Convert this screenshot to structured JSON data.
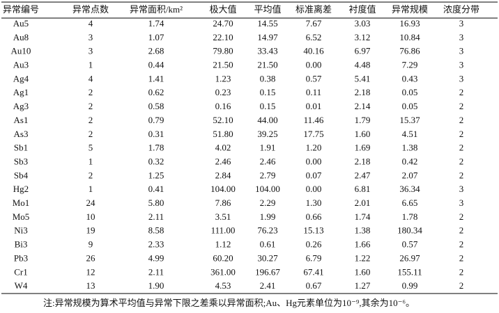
{
  "table": {
    "header": [
      "异常编号",
      "异常点数",
      "异常面积/km²",
      "极大值",
      "平均值",
      "标准离差",
      "衬度值",
      "异常规模",
      "浓度分带"
    ],
    "rows": [
      [
        "Au5",
        "4",
        "1.74",
        "24.70",
        "14.55",
        "7.67",
        "3.03",
        "16.93",
        "3"
      ],
      [
        "Au8",
        "3",
        "1.07",
        "22.10",
        "14.97",
        "6.52",
        "3.12",
        "10.84",
        "3"
      ],
      [
        "Au10",
        "3",
        "2.68",
        "79.80",
        "33.43",
        "40.16",
        "6.97",
        "76.86",
        "3"
      ],
      [
        "Au3",
        "1",
        "0.44",
        "21.50",
        "21.50",
        "0.00",
        "4.48",
        "7.29",
        "3"
      ],
      [
        "Ag4",
        "4",
        "1.41",
        "1.23",
        "0.38",
        "0.57",
        "5.41",
        "0.43",
        "3"
      ],
      [
        "Ag1",
        "2",
        "0.62",
        "0.23",
        "0.15",
        "0.11",
        "2.18",
        "0.05",
        "2"
      ],
      [
        "Ag3",
        "2",
        "0.58",
        "0.16",
        "0.15",
        "0.01",
        "2.14",
        "0.05",
        "2"
      ],
      [
        "As1",
        "2",
        "0.79",
        "52.10",
        "44.00",
        "11.46",
        "1.79",
        "15.37",
        "2"
      ],
      [
        "As3",
        "2",
        "0.31",
        "51.80",
        "39.25",
        "17.75",
        "1.60",
        "4.51",
        "2"
      ],
      [
        "Sb1",
        "5",
        "1.78",
        "4.02",
        "1.91",
        "1.20",
        "1.69",
        "1.38",
        "2"
      ],
      [
        "Sb3",
        "1",
        "0.32",
        "2.46",
        "2.46",
        "0.00",
        "2.18",
        "0.42",
        "2"
      ],
      [
        "Sb4",
        "2",
        "1.25",
        "2.84",
        "2.79",
        "0.07",
        "2.47",
        "2.07",
        "2"
      ],
      [
        "Hg2",
        "1",
        "0.41",
        "104.00",
        "104.00",
        "0.00",
        "6.81",
        "36.34",
        "3"
      ],
      [
        "Mo1",
        "24",
        "5.80",
        "7.86",
        "2.29",
        "1.30",
        "2.01",
        "6.65",
        "3"
      ],
      [
        "Mo5",
        "10",
        "2.11",
        "3.51",
        "1.99",
        "0.66",
        "1.74",
        "1.78",
        "2"
      ],
      [
        "Ni3",
        "19",
        "8.58",
        "111.00",
        "76.23",
        "15.13",
        "1.38",
        "180.34",
        "2"
      ],
      [
        "Bi3",
        "9",
        "2.33",
        "1.12",
        "0.61",
        "0.26",
        "1.66",
        "0.57",
        "2"
      ],
      [
        "Pb3",
        "26",
        "4.99",
        "60.20",
        "30.27",
        "6.79",
        "1.22",
        "26.97",
        "2"
      ],
      [
        "Cr1",
        "12",
        "2.11",
        "361.00",
        "196.67",
        "67.41",
        "1.60",
        "155.11",
        "2"
      ],
      [
        "W4",
        "13",
        "1.90",
        "4.53",
        "2.41",
        "0.67",
        "1.27",
        "0.99",
        "2"
      ]
    ],
    "note": "注:异常规模为算术平均值与异常下限之差乘以异常面积;Au、Hg元素单位为10⁻⁹,其余为10⁻⁶。"
  }
}
